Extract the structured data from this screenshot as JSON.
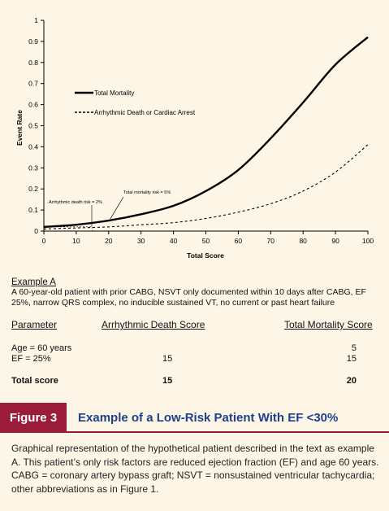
{
  "chart_data": {
    "type": "line",
    "ylabel": "Event Rate",
    "xlabel": "Total Score",
    "xlim": [
      0,
      100
    ],
    "ylim": [
      0,
      1
    ],
    "x_ticks": [
      "0",
      "10",
      "20",
      "30",
      "40",
      "50",
      "60",
      "70",
      "80",
      "90",
      "100"
    ],
    "y_ticks": [
      "0",
      "0.1",
      "0.2",
      "0.3",
      "0.4",
      "0.5",
      "0.6",
      "0.7",
      "0.8",
      "0.9",
      "1"
    ],
    "series": [
      {
        "name": "Total Mortality",
        "style": "solid",
        "x": [
          0,
          10,
          20,
          30,
          40,
          50,
          60,
          70,
          80,
          90,
          100
        ],
        "y": [
          0.02,
          0.03,
          0.05,
          0.08,
          0.12,
          0.19,
          0.29,
          0.44,
          0.61,
          0.79,
          0.92
        ]
      },
      {
        "name": "Arrhythmic Death or Cardiac Arrest",
        "style": "dashed",
        "x": [
          0,
          10,
          20,
          30,
          40,
          50,
          60,
          70,
          80,
          90,
          100
        ],
        "y": [
          0.01,
          0.015,
          0.02,
          0.03,
          0.04,
          0.06,
          0.09,
          0.13,
          0.19,
          0.28,
          0.41
        ]
      }
    ],
    "annotations": [
      {
        "text": "Total mortality risk = 5%",
        "x": 20,
        "y": 0.05
      },
      {
        "text": "Arrhythmic death risk = 2%",
        "x": 15,
        "y": 0.02
      }
    ]
  },
  "example": {
    "title": "Example A",
    "text": "A 60-year-old patient with prior CABG, NSVT only documented within 10 days after CABG, EF 25%, narrow QRS complex, no inducible sustained VT, no current or past heart failure"
  },
  "table": {
    "headers": [
      "Parameter",
      "Arrhythmic Death Score",
      "Total Mortality Score"
    ],
    "rows": [
      {
        "param": "Age = 60 years",
        "arrhythmic": "",
        "total": "5"
      },
      {
        "param": "EF = 25%",
        "arrhythmic": "15",
        "total": "15"
      }
    ],
    "total_row": {
      "param": "Total score",
      "arrhythmic": "15",
      "total": "20"
    }
  },
  "figure": {
    "label": "Figure 3",
    "title": "Example of a Low-Risk Patient With EF <30%",
    "caption": "Graphical representation of the hypothetical patient described in the text as example A. This patient’s only risk factors are reduced ejection fraction (EF) and age 60 years. CABG = coronary artery bypass graft; NSVT = nonsustained ventricular tachycardia; other abbreviations as in Figure 1."
  },
  "colors": {
    "figure_label_bg": "#9b1b3b",
    "figure_title": "#1e3f8a",
    "background": "#fdf6e6"
  }
}
